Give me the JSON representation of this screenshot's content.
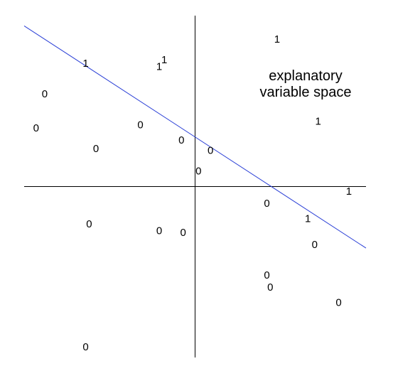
{
  "labels": {
    "region_line1": "explanatory",
    "region_line2": "variable space"
  },
  "colors": {
    "boundary": "#2a3fd6",
    "axes": "#000000",
    "text": "#000000"
  },
  "chart_data": {
    "type": "scatter",
    "title": "",
    "xlabel": "",
    "ylabel": "",
    "xlim": [
      -5,
      5
    ],
    "ylim": [
      -5,
      5
    ],
    "grid": false,
    "boundary_line": {
      "slope": -0.65,
      "intercept": 1.45
    },
    "points": [
      {
        "x": 2.4,
        "y": 4.3,
        "label": "1"
      },
      {
        "x": -0.9,
        "y": 3.7,
        "label": "1"
      },
      {
        "x": -1.05,
        "y": 3.5,
        "label": "1"
      },
      {
        "x": -3.2,
        "y": 3.6,
        "label": "1"
      },
      {
        "x": 3.6,
        "y": 1.9,
        "label": "1"
      },
      {
        "x": 4.5,
        "y": -0.15,
        "label": "1"
      },
      {
        "x": 3.3,
        "y": -0.95,
        "label": "1"
      },
      {
        "x": -4.4,
        "y": 2.7,
        "label": "0"
      },
      {
        "x": -4.65,
        "y": 1.7,
        "label": "0"
      },
      {
        "x": -1.6,
        "y": 1.8,
        "label": "0"
      },
      {
        "x": -2.9,
        "y": 1.1,
        "label": "0"
      },
      {
        "x": -0.4,
        "y": 1.35,
        "label": "0"
      },
      {
        "x": 0.45,
        "y": 1.05,
        "label": "0"
      },
      {
        "x": 0.1,
        "y": 0.45,
        "label": "0"
      },
      {
        "x": 2.1,
        "y": -0.5,
        "label": "0"
      },
      {
        "x": -3.1,
        "y": -1.1,
        "label": "0"
      },
      {
        "x": -1.05,
        "y": -1.3,
        "label": "0"
      },
      {
        "x": -0.35,
        "y": -1.35,
        "label": "0"
      },
      {
        "x": 3.5,
        "y": -1.7,
        "label": "0"
      },
      {
        "x": 2.1,
        "y": -2.6,
        "label": "0"
      },
      {
        "x": 2.2,
        "y": -2.95,
        "label": "0"
      },
      {
        "x": 4.2,
        "y": -3.4,
        "label": "0"
      },
      {
        "x": -3.2,
        "y": -4.7,
        "label": "0"
      }
    ]
  }
}
